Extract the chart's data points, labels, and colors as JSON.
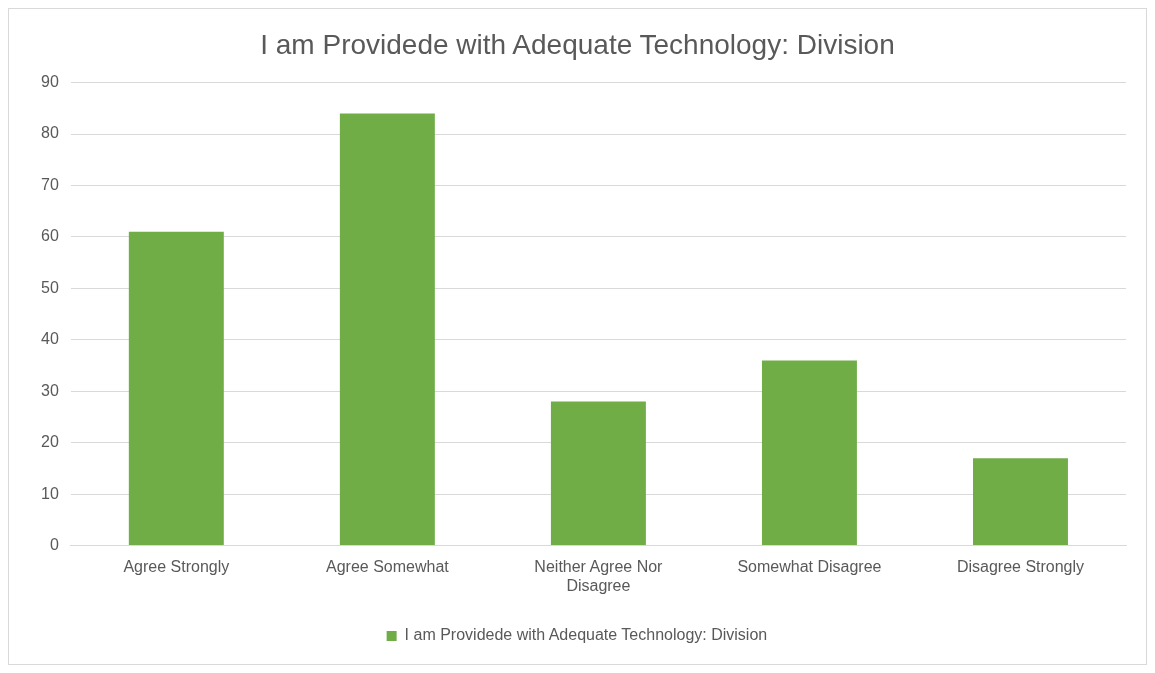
{
  "chart_data": {
    "type": "bar",
    "title": "I am Providede with Adequate Technology: Division",
    "categories": [
      "Agree Strongly",
      "Agree Somewhat",
      "Neither Agree Nor Disagree",
      "Somewhat Disagree",
      "Disagree Strongly"
    ],
    "series": [
      {
        "name": "I am Providede with Adequate Technology: Division",
        "color": "#70ad47",
        "values": [
          61,
          84,
          28,
          36,
          17
        ]
      }
    ],
    "ylim": [
      0,
      90
    ],
    "yticks": [
      0,
      10,
      20,
      30,
      40,
      50,
      60,
      70,
      80,
      90
    ],
    "grid": "y",
    "legend": "bottom"
  }
}
